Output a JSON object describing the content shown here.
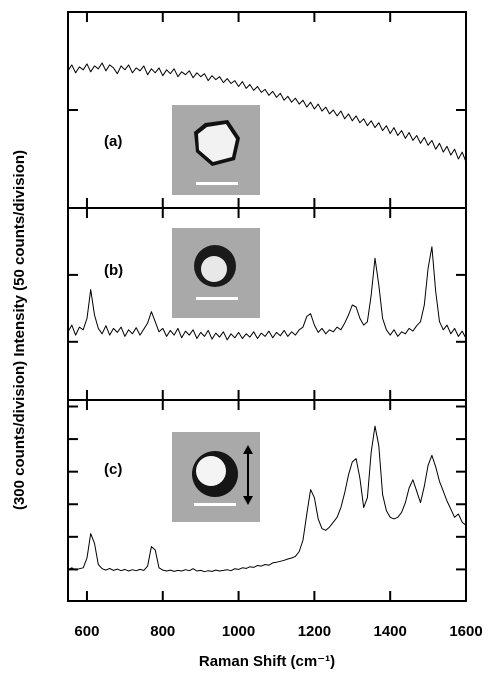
{
  "y_label": "(300 counts/division) Intensity (50 counts/division)",
  "chart_data": [
    {
      "type": "line",
      "annotation": "(a)",
      "color": "#000000",
      "xlim": [
        550,
        1600
      ],
      "ylim": [
        0,
        2
      ],
      "yticks": [
        1
      ],
      "x": [
        550,
        560,
        570,
        580,
        590,
        600,
        610,
        620,
        630,
        640,
        650,
        660,
        670,
        680,
        690,
        700,
        710,
        720,
        730,
        740,
        750,
        760,
        770,
        780,
        790,
        800,
        810,
        820,
        830,
        840,
        850,
        860,
        870,
        880,
        890,
        900,
        910,
        920,
        930,
        940,
        950,
        960,
        970,
        980,
        990,
        1000,
        1010,
        1020,
        1030,
        1040,
        1050,
        1060,
        1070,
        1080,
        1090,
        1100,
        1110,
        1120,
        1130,
        1140,
        1150,
        1160,
        1170,
        1180,
        1190,
        1200,
        1210,
        1220,
        1230,
        1240,
        1250,
        1260,
        1270,
        1280,
        1290,
        1300,
        1310,
        1320,
        1330,
        1340,
        1350,
        1360,
        1370,
        1380,
        1390,
        1400,
        1410,
        1420,
        1430,
        1440,
        1450,
        1460,
        1470,
        1480,
        1490,
        1500,
        1510,
        1520,
        1530,
        1540,
        1550,
        1560,
        1570,
        1580,
        1590,
        1600
      ],
      "values": [
        1.4,
        1.46,
        1.38,
        1.44,
        1.41,
        1.47,
        1.39,
        1.45,
        1.42,
        1.48,
        1.4,
        1.46,
        1.43,
        1.37,
        1.45,
        1.41,
        1.46,
        1.38,
        1.43,
        1.4,
        1.45,
        1.36,
        1.42,
        1.38,
        1.43,
        1.35,
        1.41,
        1.37,
        1.42,
        1.34,
        1.39,
        1.36,
        1.4,
        1.33,
        1.38,
        1.34,
        1.37,
        1.3,
        1.35,
        1.31,
        1.34,
        1.28,
        1.32,
        1.27,
        1.3,
        1.24,
        1.29,
        1.22,
        1.26,
        1.2,
        1.24,
        1.18,
        1.21,
        1.15,
        1.19,
        1.13,
        1.17,
        1.1,
        1.14,
        1.08,
        1.12,
        1.06,
        1.1,
        1.03,
        1.08,
        1.01,
        1.06,
        0.99,
        1.03,
        0.96,
        1.0,
        0.94,
        0.99,
        0.91,
        0.96,
        0.89,
        0.94,
        0.87,
        0.91,
        0.84,
        0.89,
        0.82,
        0.87,
        0.79,
        0.84,
        0.76,
        0.82,
        0.74,
        0.79,
        0.71,
        0.77,
        0.69,
        0.74,
        0.66,
        0.72,
        0.64,
        0.69,
        0.6,
        0.66,
        0.57,
        0.63,
        0.54,
        0.6,
        0.5,
        0.57,
        0.47
      ]
    },
    {
      "type": "line",
      "annotation": "(b)",
      "color": "#000000",
      "xlim": [
        550,
        1600
      ],
      "ylim": [
        0.13,
        3
      ],
      "yticks": [
        1,
        2
      ],
      "x": [
        550,
        560,
        570,
        580,
        590,
        600,
        610,
        620,
        630,
        640,
        650,
        660,
        670,
        680,
        690,
        700,
        710,
        720,
        730,
        740,
        750,
        760,
        770,
        780,
        790,
        800,
        810,
        820,
        830,
        840,
        850,
        860,
        870,
        880,
        890,
        900,
        910,
        920,
        930,
        940,
        950,
        960,
        970,
        980,
        990,
        1000,
        1010,
        1020,
        1030,
        1040,
        1050,
        1060,
        1070,
        1080,
        1090,
        1100,
        1110,
        1120,
        1130,
        1140,
        1150,
        1160,
        1170,
        1180,
        1190,
        1200,
        1210,
        1220,
        1230,
        1240,
        1250,
        1260,
        1270,
        1280,
        1290,
        1300,
        1310,
        1320,
        1330,
        1340,
        1350,
        1360,
        1370,
        1380,
        1390,
        1400,
        1410,
        1420,
        1430,
        1440,
        1450,
        1460,
        1470,
        1480,
        1490,
        1500,
        1510,
        1520,
        1530,
        1540,
        1550,
        1560,
        1570,
        1580,
        1590,
        1600
      ],
      "values": [
        1.15,
        1.25,
        1.1,
        1.22,
        1.18,
        1.35,
        1.78,
        1.4,
        1.2,
        1.12,
        1.24,
        1.1,
        1.2,
        1.14,
        1.22,
        1.08,
        1.18,
        1.12,
        1.21,
        1.1,
        1.19,
        1.28,
        1.45,
        1.3,
        1.15,
        1.2,
        1.08,
        1.17,
        1.1,
        1.2,
        1.06,
        1.16,
        1.1,
        1.18,
        1.05,
        1.14,
        1.08,
        1.17,
        1.04,
        1.13,
        1.07,
        1.15,
        1.03,
        1.12,
        1.06,
        1.14,
        1.05,
        1.12,
        1.07,
        1.15,
        1.05,
        1.13,
        1.08,
        1.16,
        1.06,
        1.14,
        1.09,
        1.17,
        1.08,
        1.15,
        1.1,
        1.18,
        1.22,
        1.38,
        1.42,
        1.25,
        1.14,
        1.2,
        1.12,
        1.18,
        1.15,
        1.22,
        1.18,
        1.28,
        1.4,
        1.55,
        1.52,
        1.35,
        1.25,
        1.3,
        1.7,
        2.25,
        1.85,
        1.35,
        1.18,
        1.1,
        1.18,
        1.08,
        1.15,
        1.12,
        1.2,
        1.16,
        1.24,
        1.3,
        1.55,
        2.1,
        2.42,
        1.75,
        1.3,
        1.18,
        1.25,
        1.12,
        1.2,
        1.08,
        1.16,
        1.05
      ]
    },
    {
      "type": "line",
      "annotation": "(c)",
      "color": "#000000",
      "x_label": "Raman Shift (cm⁻¹)",
      "xlim": [
        550,
        1600
      ],
      "xticks": [
        600,
        800,
        1000,
        1200,
        1400,
        1600
      ],
      "ylim": [
        0.03,
        6.2
      ],
      "yticks": [
        1,
        2,
        3,
        4,
        5,
        6
      ],
      "x": [
        550,
        560,
        570,
        580,
        590,
        600,
        610,
        620,
        630,
        640,
        650,
        660,
        670,
        680,
        690,
        700,
        710,
        720,
        730,
        740,
        750,
        760,
        770,
        780,
        790,
        800,
        810,
        820,
        830,
        840,
        850,
        860,
        870,
        880,
        890,
        900,
        910,
        920,
        930,
        940,
        950,
        960,
        970,
        980,
        990,
        1000,
        1010,
        1020,
        1030,
        1040,
        1050,
        1060,
        1070,
        1080,
        1090,
        1100,
        1110,
        1120,
        1130,
        1140,
        1150,
        1160,
        1170,
        1180,
        1190,
        1200,
        1210,
        1220,
        1230,
        1240,
        1250,
        1260,
        1270,
        1280,
        1290,
        1300,
        1310,
        1320,
        1330,
        1340,
        1350,
        1360,
        1370,
        1380,
        1390,
        1400,
        1410,
        1420,
        1430,
        1440,
        1450,
        1460,
        1470,
        1480,
        1490,
        1500,
        1510,
        1520,
        1530,
        1540,
        1550,
        1560,
        1570,
        1580,
        1590,
        1600
      ],
      "values": [
        1.0,
        1.05,
        0.98,
        1.02,
        1.05,
        1.35,
        2.1,
        1.8,
        1.15,
        1.02,
        0.98,
        1.03,
        0.97,
        1.01,
        0.96,
        1.0,
        0.95,
        0.99,
        0.96,
        1.0,
        0.97,
        1.1,
        1.7,
        1.6,
        1.05,
        0.98,
        0.95,
        0.98,
        0.94,
        0.97,
        0.95,
        0.99,
        0.96,
        1.02,
        0.95,
        0.97,
        0.93,
        0.96,
        0.94,
        0.98,
        0.95,
        0.97,
        0.99,
        0.96,
        1.02,
        1.0,
        1.05,
        1.03,
        1.08,
        1.06,
        1.12,
        1.1,
        1.15,
        1.13,
        1.2,
        1.22,
        1.25,
        1.28,
        1.32,
        1.35,
        1.4,
        1.55,
        1.9,
        2.7,
        3.45,
        3.2,
        2.55,
        2.25,
        2.2,
        2.3,
        2.45,
        2.6,
        2.9,
        3.35,
        3.9,
        4.3,
        4.4,
        3.8,
        2.9,
        3.2,
        4.6,
        5.4,
        4.8,
        3.3,
        2.8,
        2.6,
        2.55,
        2.6,
        2.75,
        3.05,
        3.5,
        3.75,
        3.4,
        3.05,
        3.55,
        4.2,
        4.5,
        4.15,
        3.7,
        3.4,
        3.1,
        2.85,
        2.6,
        2.7,
        2.45,
        2.35
      ]
    }
  ]
}
